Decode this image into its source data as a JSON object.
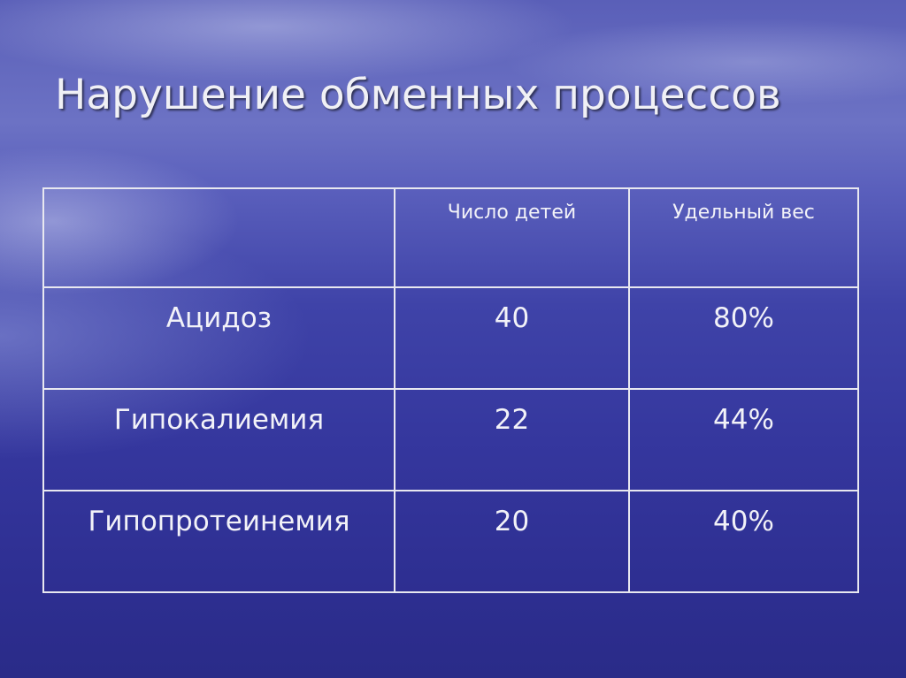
{
  "slide": {
    "title": "Нарушение обменных процессов",
    "table": {
      "headers": [
        "",
        "Число детей",
        "Удельный вес"
      ],
      "rows": [
        {
          "label": "Ацидоз",
          "count": "40",
          "share": "80%"
        },
        {
          "label": "Гипокалиемия",
          "count": "22",
          "share": "44%"
        },
        {
          "label": "Гипопротеинемия",
          "count": "20",
          "share": "40%"
        }
      ]
    }
  }
}
